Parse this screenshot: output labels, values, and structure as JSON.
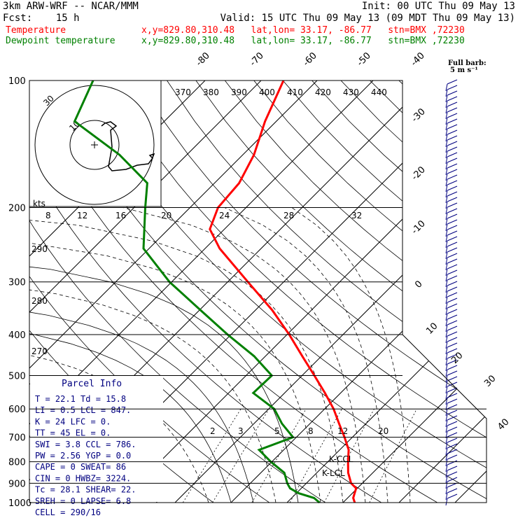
{
  "header": {
    "line1_left": "3km ARW-WRF -- NCAR/MMM",
    "line1_right": "Init: 00 UTC Thu 09 May 13",
    "line2_left": "Fcst:    15 h",
    "line2_right": "Valid: 15 UTC Thu 09 May 13 (09 MDT Thu 09 May 13)",
    "temp_label": "Temperature",
    "temp_info": "x,y=829.80,310.48   lat,lon= 33.17, -86.77   stn=BMX ,72230",
    "dew_label": "Dewpoint temperature",
    "dew_info": "x,y=829.80,310.48   lat,lon= 33.17, -86.77   stn=BMX ,72230",
    "barb_label_1": "Full barb:",
    "barb_label_2": "5 m s⁻¹"
  },
  "colors": {
    "temperature": "#ff0000",
    "dewpoint": "#008000",
    "isobar": "#000000",
    "parcel_text": "#000080",
    "barbs": "#000080"
  },
  "chart_data": {
    "type": "skew-T log-p",
    "pressure_levels": [
      100,
      200,
      300,
      400,
      500,
      600,
      700,
      800,
      900,
      1000
    ],
    "isotherm_labels": [
      "-80",
      "-70",
      "-60",
      "-50",
      "-40",
      "-30",
      "-20",
      "-10",
      "0",
      "10",
      "20",
      "30",
      "40"
    ],
    "theta_e_labels": [
      "370",
      "380",
      "390",
      "400",
      "410",
      "420",
      "430",
      "440"
    ],
    "hodograph_speed_labels": [
      "8",
      "12",
      "16",
      "20",
      "24",
      "28",
      "32"
    ],
    "hodograph_unit": "kts",
    "theta_labels": [
      "290",
      "280",
      "270"
    ],
    "mixing_ratio_labels": [
      "2",
      "3",
      "5",
      "8",
      "12",
      "20"
    ],
    "hodo_ring_labels": [
      "10",
      "30"
    ],
    "lcl_labels": [
      "K-CCL",
      "K-LCL"
    ],
    "temperature_profile": [
      {
        "p": 1000,
        "t": 22.1
      },
      {
        "p": 975,
        "t": 21.0
      },
      {
        "p": 950,
        "t": 20.4
      },
      {
        "p": 925,
        "t": 19.8
      },
      {
        "p": 900,
        "t": 18.0
      },
      {
        "p": 850,
        "t": 15.6
      },
      {
        "p": 800,
        "t": 13.6
      },
      {
        "p": 750,
        "t": 11.6
      },
      {
        "p": 700,
        "t": 8.6
      },
      {
        "p": 650,
        "t": 5.2
      },
      {
        "p": 600,
        "t": 1.6
      },
      {
        "p": 550,
        "t": -2.8
      },
      {
        "p": 500,
        "t": -7.8
      },
      {
        "p": 450,
        "t": -13.4
      },
      {
        "p": 400,
        "t": -19.6
      },
      {
        "p": 350,
        "t": -27.0
      },
      {
        "p": 300,
        "t": -36.4
      },
      {
        "p": 250,
        "t": -47.4
      },
      {
        "p": 225,
        "t": -52.6
      },
      {
        "p": 200,
        "t": -55.0
      },
      {
        "p": 175,
        "t": -55.6
      },
      {
        "p": 150,
        "t": -58.0
      },
      {
        "p": 125,
        "t": -62.0
      },
      {
        "p": 100,
        "t": -66.0
      }
    ],
    "dewpoint_profile": [
      {
        "p": 1000,
        "t": 15.8
      },
      {
        "p": 975,
        "t": 14.0
      },
      {
        "p": 950,
        "t": 10.4
      },
      {
        "p": 925,
        "t": 8.0
      },
      {
        "p": 900,
        "t": 6.6
      },
      {
        "p": 850,
        "t": 4.2
      },
      {
        "p": 800,
        "t": -0.2
      },
      {
        "p": 750,
        "t": -4.4
      },
      {
        "p": 700,
        "t": -0.6
      },
      {
        "p": 650,
        "t": -5.0
      },
      {
        "p": 600,
        "t": -9.0
      },
      {
        "p": 550,
        "t": -15.6
      },
      {
        "p": 500,
        "t": -15.4
      },
      {
        "p": 450,
        "t": -22.0
      },
      {
        "p": 400,
        "t": -30.6
      },
      {
        "p": 350,
        "t": -39.8
      },
      {
        "p": 300,
        "t": -50.4
      },
      {
        "p": 250,
        "t": -61.0
      },
      {
        "p": 200,
        "t": -68.0
      },
      {
        "p": 175,
        "t": -72.0
      },
      {
        "p": 150,
        "t": -82.0
      },
      {
        "p": 125,
        "t": -96.0
      },
      {
        "p": 100,
        "t": -100.0
      }
    ],
    "parcel_info": {
      "title": "Parcel Info",
      "rows": [
        "T  =    22.1  Td =  15.8",
        "LI =     0.5  LCL =  847.",
        "K  =      24  LFC =    0.",
        "TT =      45  EL  =    0.",
        "SWI =    3.8  CCL =  786.",
        "PW =    2.56  YGP =   0.0",
        "CAPE =     0  SWEAT=   86",
        "CIN =      0  HWBZ= 3224.",
        "Tc =    28.1  SHEAR=  22.",
        "SREH =     0  LAPSE=  6.8",
        "CELL = 290/16"
      ]
    }
  }
}
